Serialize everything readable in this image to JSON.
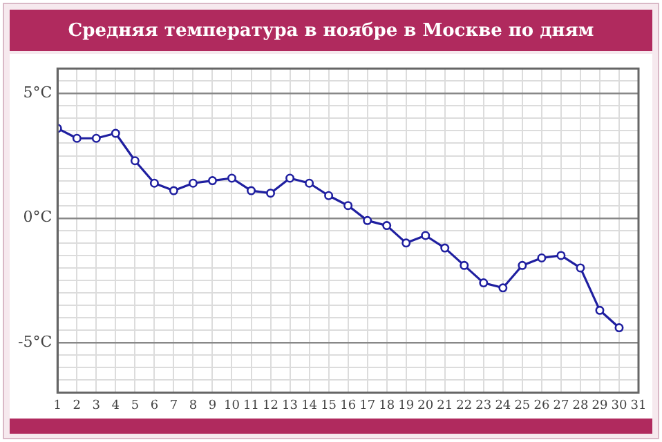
{
  "chart_data": {
    "type": "line",
    "title": "Средняя температура в ноябре в Москве по дням",
    "x": [
      1,
      2,
      3,
      4,
      5,
      6,
      7,
      8,
      9,
      10,
      11,
      12,
      13,
      14,
      15,
      16,
      17,
      18,
      19,
      20,
      21,
      22,
      23,
      24,
      25,
      26,
      27,
      28,
      29,
      30
    ],
    "series": [
      {
        "color": "#1f1fa0",
        "values": [
          3.6,
          3.2,
          3.2,
          3.4,
          2.3,
          1.4,
          1.1,
          1.4,
          1.5,
          1.6,
          1.1,
          1.0,
          1.6,
          1.4,
          0.9,
          0.5,
          -0.1,
          -0.3,
          -1.0,
          -0.7,
          -1.2,
          -1.9,
          -2.6,
          -2.8,
          -1.9,
          -1.6,
          -1.5,
          -2.0,
          -3.7,
          -4.4
        ]
      }
    ],
    "xlim": [
      1,
      31
    ],
    "xticks": [
      1,
      2,
      3,
      4,
      5,
      6,
      7,
      8,
      9,
      10,
      11,
      12,
      13,
      14,
      15,
      16,
      17,
      18,
      19,
      20,
      21,
      22,
      23,
      24,
      25,
      26,
      27,
      28,
      29,
      30,
      31
    ],
    "ylim": [
      -7,
      6
    ],
    "yticks": [
      {
        "value": -7,
        "label": null
      },
      {
        "value": -6.5,
        "label": null
      },
      {
        "value": -6,
        "label": null
      },
      {
        "value": -5.5,
        "label": null
      },
      {
        "value": -5,
        "label": "-5°C"
      },
      {
        "value": -4.5,
        "label": null
      },
      {
        "value": -4,
        "label": null
      },
      {
        "value": -3.5,
        "label": null
      },
      {
        "value": -3,
        "label": null
      },
      {
        "value": -2.5,
        "label": null
      },
      {
        "value": -2,
        "label": null
      },
      {
        "value": -1.5,
        "label": null
      },
      {
        "value": -1,
        "label": null
      },
      {
        "value": -0.5,
        "label": null
      },
      {
        "value": 0,
        "label": "0°C"
      },
      {
        "value": 0.5,
        "label": null
      },
      {
        "value": 1,
        "label": null
      },
      {
        "value": 1.5,
        "label": null
      },
      {
        "value": 2,
        "label": null
      },
      {
        "value": 2.5,
        "label": null
      },
      {
        "value": 3,
        "label": null
      },
      {
        "value": 3.5,
        "label": null
      },
      {
        "value": 4,
        "label": null
      },
      {
        "value": 4.5,
        "label": null
      },
      {
        "value": 5,
        "label": "5°C"
      },
      {
        "value": 5.5,
        "label": null
      },
      {
        "value": 6,
        "label": null
      }
    ],
    "grid": true,
    "marker": "circle",
    "legend": false
  }
}
